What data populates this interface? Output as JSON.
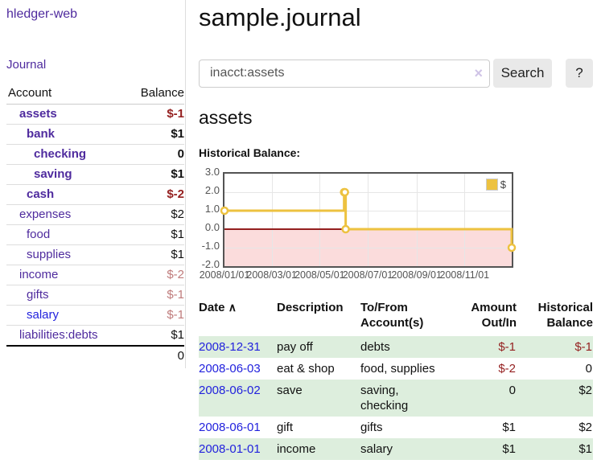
{
  "sidebar": {
    "app_title": "hledger-web",
    "nav": {
      "journal_label": "Journal"
    },
    "accounts_table": {
      "headers": {
        "account": "Account",
        "balance": "Balance"
      },
      "rows": [
        {
          "name": "assets",
          "level": 1,
          "emph": true,
          "balance": "$-1"
        },
        {
          "name": "bank",
          "level": 2,
          "emph": true,
          "balance": "$1"
        },
        {
          "name": "checking",
          "level": 3,
          "emph": true,
          "balance": "0"
        },
        {
          "name": "saving",
          "level": 3,
          "emph": true,
          "balance": "$1"
        },
        {
          "name": "cash",
          "level": 2,
          "emph": true,
          "balance": "$-2"
        },
        {
          "name": "expenses",
          "level": 1,
          "emph": false,
          "balance": "$2"
        },
        {
          "name": "food",
          "level": 2,
          "emph": false,
          "balance": "$1"
        },
        {
          "name": "supplies",
          "level": 2,
          "emph": false,
          "balance": "$1"
        },
        {
          "name": "income",
          "level": 1,
          "emph": false,
          "balance": "$-2"
        },
        {
          "name": "gifts",
          "level": 2,
          "emph": false,
          "balance": "$-1"
        },
        {
          "name": "salary",
          "level": 2,
          "emph": false,
          "balance": "$-1",
          "blue": true
        },
        {
          "name": "liabilities:debts",
          "level": 1,
          "emph": false,
          "balance": "$1"
        }
      ],
      "total": "0"
    }
  },
  "main": {
    "title": "sample.journal",
    "search": {
      "value": "inacct:assets",
      "clear_icon": "×",
      "button_label": "Search",
      "help_label": "?"
    },
    "account_heading": "assets",
    "chart_label": "Historical Balance:"
  },
  "chart_data": {
    "type": "line",
    "steps": true,
    "title": "Historical Balance:",
    "series": [
      {
        "name": "$",
        "color": "#edc240",
        "points": [
          {
            "date": "2008-01-01",
            "x": 0,
            "y": 1
          },
          {
            "date": "2008-06-01",
            "x": 152,
            "y": 2
          },
          {
            "date": "2008-06-02",
            "x": 153,
            "y": 2
          },
          {
            "date": "2008-06-03",
            "x": 154,
            "y": 0
          },
          {
            "date": "2008-12-31",
            "x": 365,
            "y": -1
          }
        ]
      }
    ],
    "x_domain": [
      0,
      365
    ],
    "y_domain": [
      -2,
      3
    ],
    "x_ticks": [
      {
        "v": 0,
        "label": "2008/01/01"
      },
      {
        "v": 60,
        "label": "2008/03/01"
      },
      {
        "v": 121,
        "label": "2008/05/01"
      },
      {
        "v": 182,
        "label": "2008/07/01"
      },
      {
        "v": 244,
        "label": "2008/09/01"
      },
      {
        "v": 305,
        "label": "2008/11/01"
      }
    ],
    "y_ticks": [
      {
        "v": 3,
        "label": "3.0"
      },
      {
        "v": 2,
        "label": "2.0"
      },
      {
        "v": 1,
        "label": "1.0"
      },
      {
        "v": 0,
        "label": "0.0"
      },
      {
        "v": -1,
        "label": "-1.0"
      },
      {
        "v": -2,
        "label": "-2.0"
      }
    ],
    "markings": {
      "negative_region_fill": "#fbdcdc",
      "zero_line_color": "#941f1f"
    },
    "grid": {
      "border_color": "#545454",
      "gridline_color": "#e6e6e6"
    },
    "legend_position": "top-right"
  },
  "register": {
    "headers": {
      "date": "Date",
      "sort_indicator": "∧",
      "description": "Description",
      "accounts": "To/From Account(s)",
      "amount": "Amount Out/In",
      "balance": "Historical Balance"
    },
    "rows": [
      {
        "date": "2008-12-31",
        "description": "pay off",
        "accounts": "debts",
        "amount": "$-1",
        "balance": "$-1"
      },
      {
        "date": "2008-06-03",
        "description": "eat & shop",
        "accounts": "food, supplies",
        "amount": "$-2",
        "balance": "0"
      },
      {
        "date": "2008-06-02",
        "description": "save",
        "accounts": "saving, checking",
        "amount": "0",
        "balance": "$2"
      },
      {
        "date": "2008-06-01",
        "description": "gift",
        "accounts": "gifts",
        "amount": "$1",
        "balance": "$2"
      },
      {
        "date": "2008-01-01",
        "description": "income",
        "accounts": "salary",
        "amount": "$1",
        "balance": "$1"
      }
    ]
  },
  "colors": {
    "link_purple": "#4f2b9e",
    "link_blue": "#2222dd",
    "negative": "#941f1f",
    "negative_faded": "#bf7b7b",
    "row_shade_green": "#ddeedd",
    "series_gold": "#edc240"
  }
}
